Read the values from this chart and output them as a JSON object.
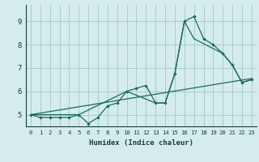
{
  "title": "",
  "xlabel": "Humidex (Indice chaleur)",
  "bg_color": "#d4ecec",
  "grid_color": "#aacccc",
  "line_color": "#1a6a5a",
  "xlim": [
    -0.5,
    23.5
  ],
  "ylim": [
    4.5,
    9.7
  ],
  "xticks": [
    0,
    1,
    2,
    3,
    4,
    5,
    6,
    7,
    8,
    9,
    10,
    11,
    12,
    13,
    14,
    15,
    16,
    17,
    18,
    19,
    20,
    21,
    22,
    23
  ],
  "yticks": [
    5,
    6,
    7,
    8,
    9
  ],
  "line1_x": [
    0,
    1,
    2,
    3,
    4,
    5,
    6,
    7,
    8,
    9,
    10,
    11,
    12,
    13,
    14,
    15,
    16,
    17,
    18,
    19,
    20,
    21,
    22,
    23
  ],
  "line1_y": [
    5.0,
    4.88,
    4.88,
    4.88,
    4.88,
    5.0,
    4.62,
    4.88,
    5.38,
    5.5,
    6.0,
    6.13,
    6.25,
    5.5,
    5.5,
    6.75,
    9.0,
    9.2,
    8.25,
    8.0,
    7.62,
    7.12,
    6.38,
    6.5
  ],
  "line2_x": [
    0,
    5,
    10,
    13,
    14,
    15,
    16,
    17,
    20,
    21,
    22,
    23
  ],
  "line2_y": [
    5.0,
    5.0,
    6.0,
    5.5,
    5.5,
    6.75,
    9.0,
    8.25,
    7.62,
    7.12,
    6.38,
    6.5
  ],
  "line3_x": [
    0,
    23
  ],
  "line3_y": [
    5.0,
    6.55
  ],
  "xlabel_fontsize": 6.5,
  "tick_fontsize_x": 5.2,
  "tick_fontsize_y": 6.5
}
